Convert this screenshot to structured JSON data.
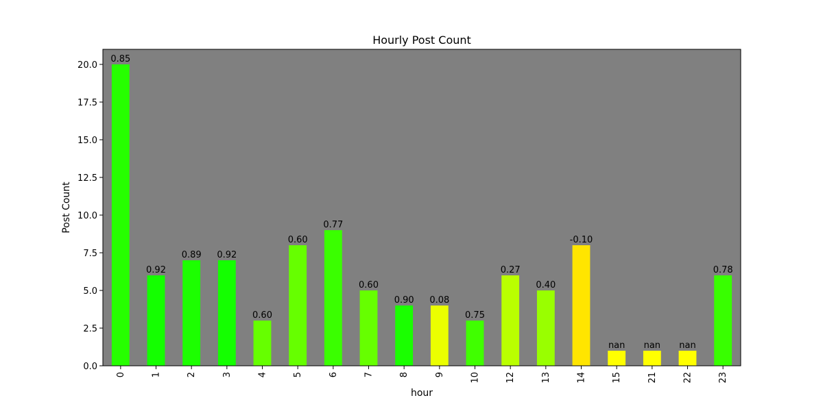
{
  "chart_data": {
    "type": "bar",
    "title": "Hourly Post Count",
    "xlabel": "hour",
    "ylabel": "Post Count",
    "ylim": [
      0,
      21
    ],
    "yticks": [
      "0.0",
      "2.5",
      "5.0",
      "7.5",
      "10.0",
      "12.5",
      "15.0",
      "17.5",
      "20.0"
    ],
    "categories": [
      "0",
      "1",
      "2",
      "3",
      "4",
      "5",
      "6",
      "7",
      "8",
      "9",
      "10",
      "12",
      "13",
      "14",
      "15",
      "21",
      "22",
      "23"
    ],
    "values": [
      20,
      6,
      7,
      7,
      3,
      8,
      9,
      5,
      4,
      4,
      3,
      6,
      5,
      8,
      1,
      1,
      1,
      6
    ],
    "bar_labels": [
      "0.85",
      "0.92",
      "0.89",
      "0.92",
      "0.60",
      "0.60",
      "0.77",
      "0.60",
      "0.90",
      "0.08",
      "0.75",
      "0.27",
      "0.40",
      "-0.10",
      "nan",
      "nan",
      "nan",
      "0.78"
    ],
    "bar_colors": [
      "#26ff00",
      "#14ff00",
      "#1cff00",
      "#14ff00",
      "#66ff00",
      "#66ff00",
      "#3aff00",
      "#66ff00",
      "#1aff00",
      "#ebff00",
      "#40ff00",
      "#baff00",
      "#99ff00",
      "#ffe500",
      "#ffff00",
      "#ffff00",
      "#ffff00",
      "#38ff00"
    ],
    "plot_background": "#808080",
    "grid": false,
    "legend": "none"
  }
}
